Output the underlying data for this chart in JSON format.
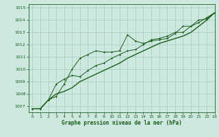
{
  "xlabel": "Graphe pression niveau de la mer (hPa)",
  "bg_color": "#cce8df",
  "grid_color": "#aacfc5",
  "line_color": "#1a5c1a",
  "ylim": [
    1006.5,
    1015.3
  ],
  "xlim": [
    -0.5,
    23
  ],
  "yticks": [
    1007,
    1008,
    1009,
    1010,
    1011,
    1012,
    1013,
    1014,
    1015
  ],
  "xticks": [
    0,
    1,
    2,
    3,
    4,
    5,
    6,
    7,
    8,
    9,
    10,
    11,
    12,
    13,
    14,
    15,
    16,
    17,
    18,
    19,
    20,
    21,
    22,
    23
  ],
  "series1_x": [
    0,
    1,
    2,
    3,
    4,
    5,
    6,
    7,
    8,
    9,
    10,
    11,
    12,
    13,
    14,
    15,
    16,
    17,
    18,
    19,
    20,
    21,
    22,
    23
  ],
  "series1_y": [
    1006.8,
    1006.8,
    1007.5,
    1007.8,
    1008.8,
    1010.0,
    1010.9,
    1011.2,
    1011.5,
    1011.4,
    1011.4,
    1011.5,
    1012.8,
    1012.3,
    1012.1,
    1012.3,
    1012.4,
    1012.5,
    1012.9,
    1013.5,
    1013.5,
    1014.0,
    1014.1,
    1014.6
  ],
  "series2_x": [
    0,
    1,
    2,
    3,
    4,
    5,
    6,
    7,
    8,
    9,
    10,
    11,
    12,
    13,
    14,
    15,
    16,
    17,
    18,
    19,
    20,
    21,
    22,
    23
  ],
  "series2_y": [
    1006.8,
    1006.8,
    1007.5,
    1008.8,
    1009.2,
    1009.5,
    1009.4,
    1009.9,
    1010.3,
    1010.5,
    1010.9,
    1011.2,
    1011.5,
    1011.6,
    1012.0,
    1012.4,
    1012.5,
    1012.7,
    1013.0,
    1013.0,
    1013.5,
    1013.8,
    1014.2,
    1014.6
  ],
  "series3_x": [
    0,
    1,
    2,
    3,
    4,
    5,
    6,
    7,
    8,
    9,
    10,
    11,
    12,
    13,
    14,
    15,
    16,
    17,
    18,
    19,
    20,
    21,
    22,
    23
  ],
  "series3_y": [
    1006.8,
    1006.8,
    1007.5,
    1008.0,
    1008.2,
    1008.5,
    1009.0,
    1009.3,
    1009.6,
    1009.9,
    1010.2,
    1010.5,
    1010.9,
    1011.2,
    1011.5,
    1011.8,
    1012.1,
    1012.3,
    1012.5,
    1012.7,
    1013.0,
    1013.5,
    1014.0,
    1014.6
  ]
}
